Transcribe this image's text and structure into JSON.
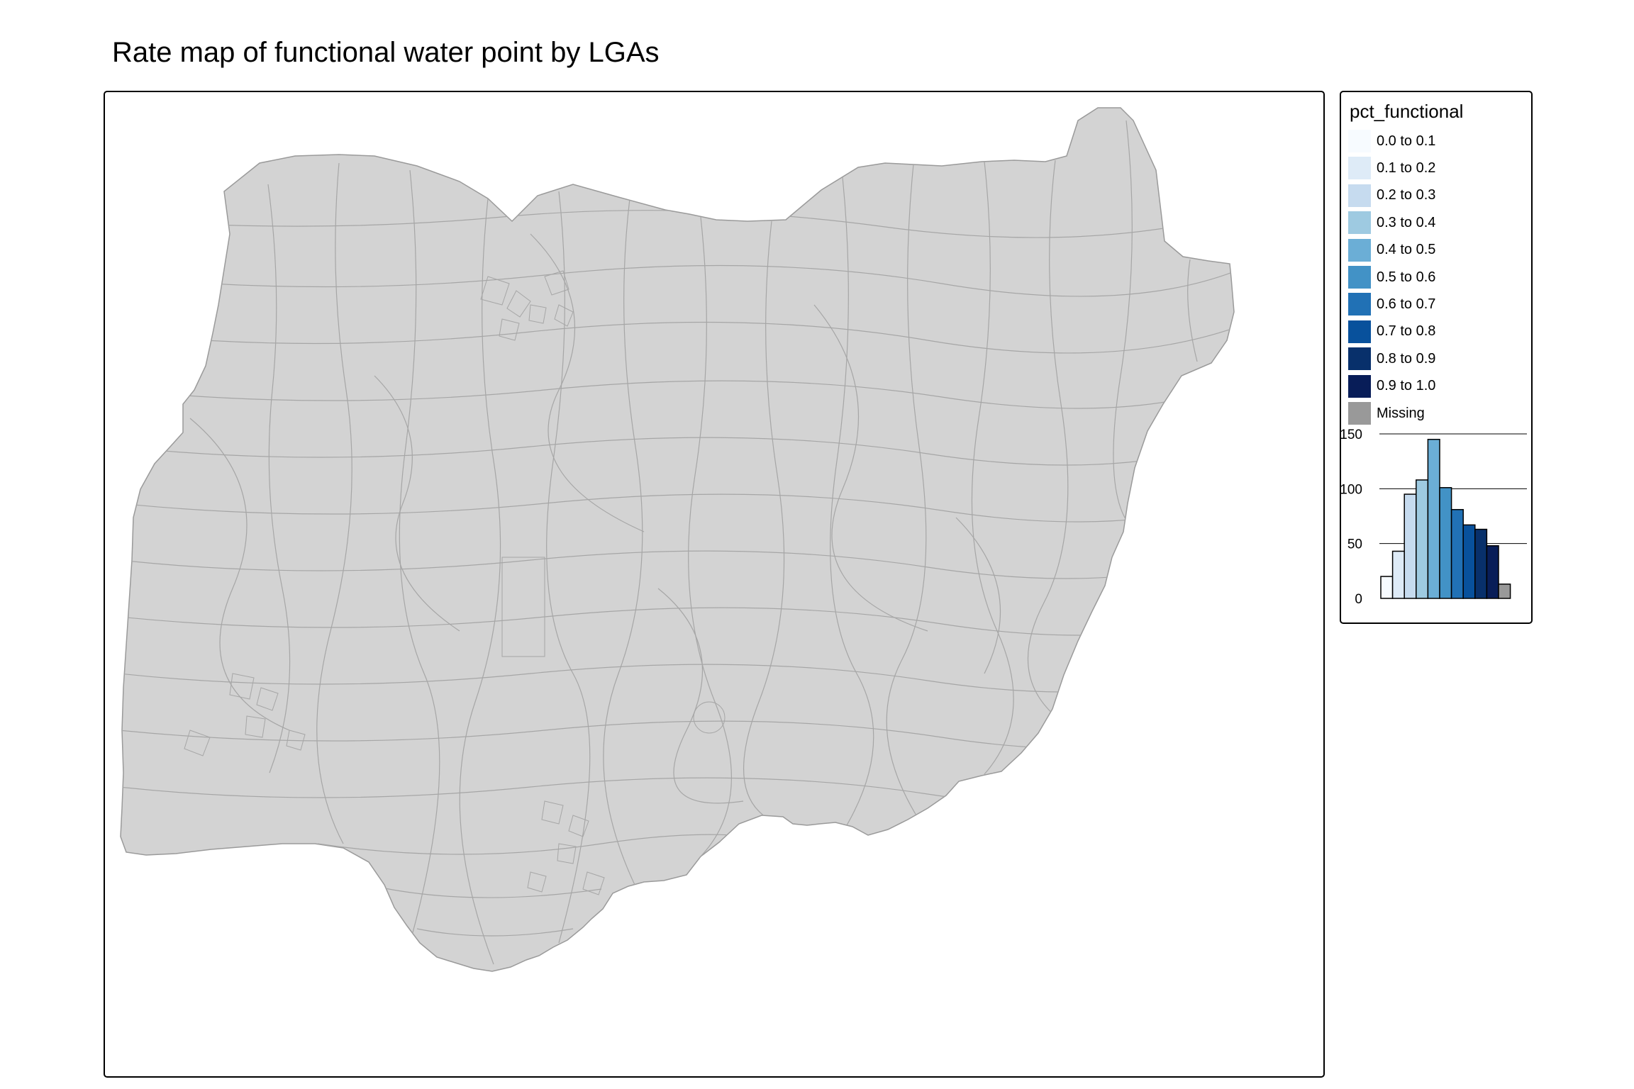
{
  "title": "Rate map of functional water point by LGAs",
  "colors": {
    "land": "#d3d3d3",
    "boundary": "#9a9a9a",
    "frame": "#000000"
  },
  "legend": {
    "title": "pct_functional",
    "classes": [
      {
        "label": "0.0 to 0.1",
        "color": "#f7fbff"
      },
      {
        "label": "0.1 to 0.2",
        "color": "#deebf7"
      },
      {
        "label": "0.2 to 0.3",
        "color": "#c6dbef"
      },
      {
        "label": "0.3 to 0.4",
        "color": "#9ecae1"
      },
      {
        "label": "0.4 to 0.5",
        "color": "#6baed6"
      },
      {
        "label": "0.5 to 0.6",
        "color": "#4292c6"
      },
      {
        "label": "0.6 to 0.7",
        "color": "#2171b5"
      },
      {
        "label": "0.7 to 0.8",
        "color": "#08519c"
      },
      {
        "label": "0.8 to 0.9",
        "color": "#08306b"
      },
      {
        "label": "0.9 to 1.0",
        "color": "#081d58"
      },
      {
        "label": "Missing",
        "color": "#999999"
      }
    ]
  },
  "chart_data": {
    "type": "bar",
    "categories": [
      "0.0 to 0.1",
      "0.1 to 0.2",
      "0.2 to 0.3",
      "0.3 to 0.4",
      "0.4 to 0.5",
      "0.5 to 0.6",
      "0.6 to 0.7",
      "0.7 to 0.8",
      "0.8 to 0.9",
      "0.9 to 1.0",
      "Missing"
    ],
    "values": [
      20,
      43,
      95,
      108,
      145,
      101,
      81,
      67,
      63,
      48,
      13
    ],
    "ylim": [
      0,
      150
    ],
    "yticks": [
      0,
      50,
      100,
      150
    ],
    "grid": true
  }
}
